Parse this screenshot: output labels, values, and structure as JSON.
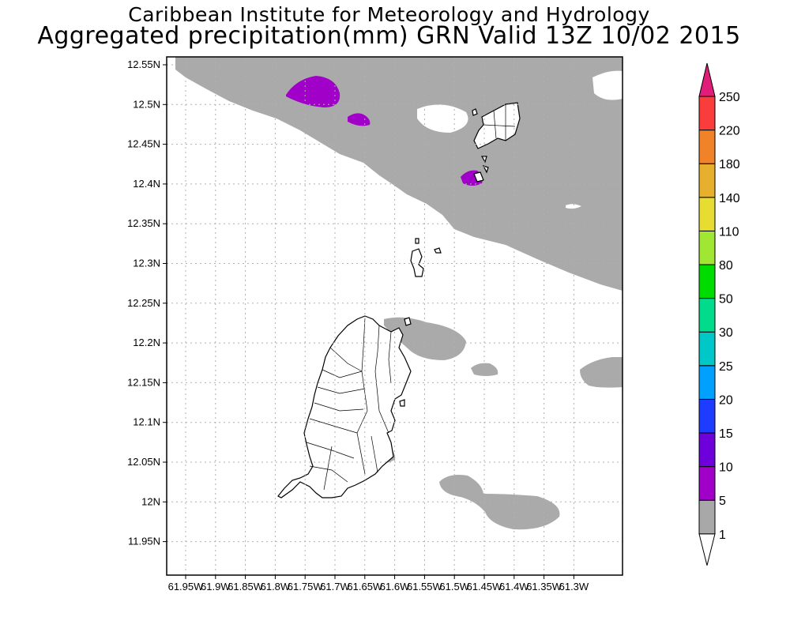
{
  "title": {
    "line1": "Caribbean Institute for Meteorology and Hydrology",
    "line2": "Aggregated precipitation(mm) GRN Valid 13Z 10/02 2015"
  },
  "axes": {
    "lat_labels": [
      "12.55N",
      "12.5N",
      "12.45N",
      "12.4N",
      "12.35N",
      "12.3N",
      "12.25N",
      "12.2N",
      "12.15N",
      "12.1N",
      "12.05N",
      "12N",
      "11.95N"
    ],
    "lon_labels": [
      "61.95W",
      "61.9W",
      "61.85W",
      "61.8W",
      "61.75W",
      "61.7W",
      "61.65W",
      "61.6W",
      "61.55W",
      "61.5W",
      "61.45W",
      "61.4W",
      "61.35W",
      "61.3W"
    ]
  },
  "colorbar": {
    "levels": [
      "1",
      "5",
      "10",
      "15",
      "20",
      "25",
      "30",
      "50",
      "80",
      "110",
      "140",
      "180",
      "220",
      "250"
    ],
    "colors": [
      "#ffffff",
      "#a8a8a8",
      "#a000c8",
      "#6e00dc",
      "#1e3cff",
      "#00a0ff",
      "#00c8c8",
      "#00dc8c",
      "#00dc00",
      "#a0e632",
      "#e6dc32",
      "#e6af2d",
      "#f08228",
      "#fa3c3c",
      "#e01e7a"
    ]
  },
  "layers": {
    "precip_1_5_color": "#aaaaaa",
    "precip_5_10_color": "#a000c8",
    "coast_color": "#000000"
  }
}
